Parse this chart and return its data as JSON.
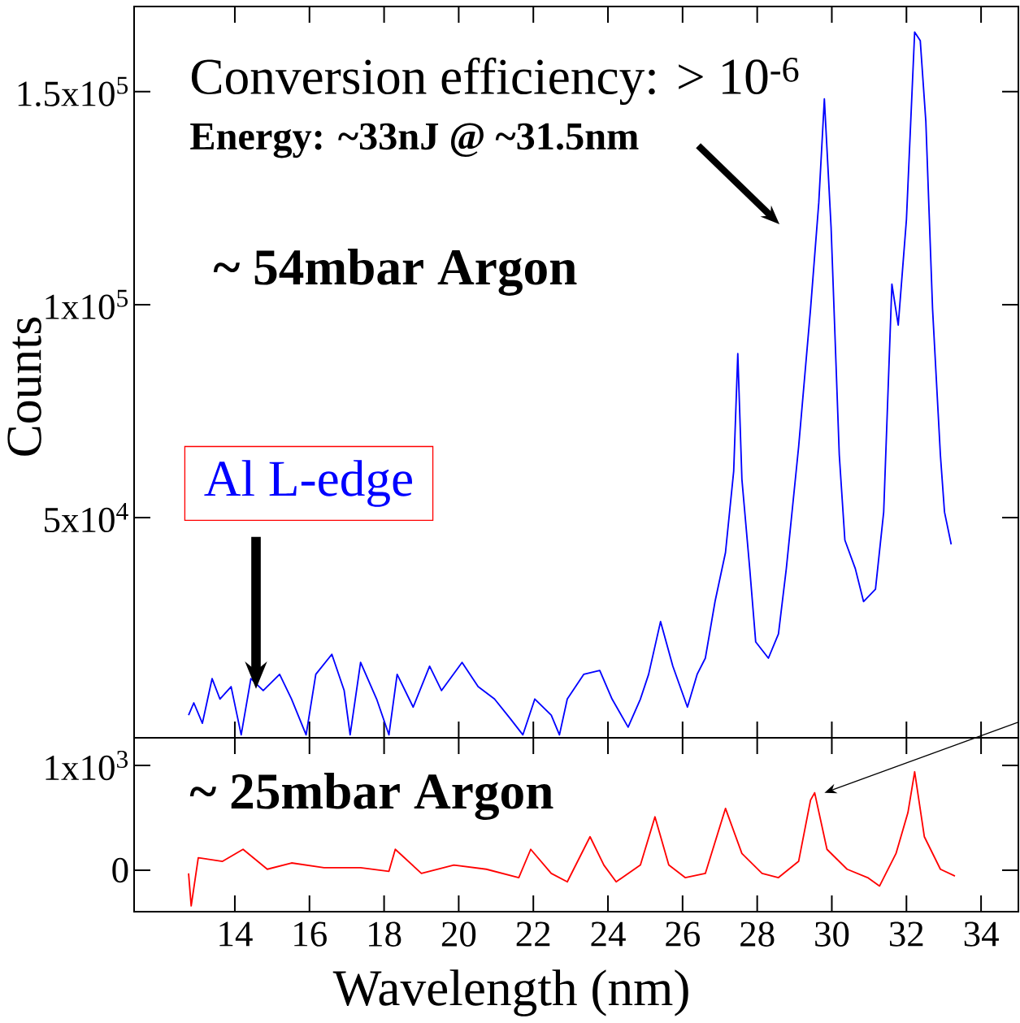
{
  "chart_data": [
    {
      "type": "line",
      "ylabel": "Counts",
      "tick_labels": "y",
      "xlim": [
        11.3,
        35.0
      ],
      "ylim": [
        -1700,
        170000
      ],
      "xticks": [
        14,
        16,
        18,
        20,
        22,
        24,
        26,
        28,
        30,
        32,
        34
      ],
      "yticks": [
        {
          "value": 50000,
          "label": "5x10$^{4}$"
        },
        {
          "value": 100000,
          "label": "1x10$^{5}$"
        },
        {
          "value": 150000,
          "label": "1.5x10$^{5}$"
        }
      ],
      "annotations": [
        "Conversion efficiency: > 10$^{-6}$",
        "Energy: ~33nJ @ ~31.5nm",
        "~ 54mbar Argon",
        "Al L-edge"
      ],
      "series": [
        {
          "color": "#0000ff",
          "line_style": "solid",
          "marker": "none",
          "x": [
            12.76,
            12.9,
            13.13,
            13.39,
            13.6,
            13.9,
            14.17,
            14.43,
            14.76,
            15.2,
            15.52,
            15.91,
            16.17,
            16.6,
            16.93,
            17.09,
            17.37,
            17.8,
            18.13,
            18.35,
            18.78,
            19.22,
            19.54,
            20.09,
            20.52,
            20.96,
            21.39,
            21.72,
            22.04,
            22.48,
            22.7,
            22.91,
            23.35,
            23.78,
            24.11,
            24.54,
            24.87,
            25.09,
            25.41,
            25.74,
            26.13,
            26.39,
            26.61,
            26.87,
            27.15,
            27.37,
            27.48,
            27.59,
            27.8,
            27.96,
            28.3,
            28.57,
            28.78,
            29.11,
            29.43,
            29.65,
            29.8,
            29.98,
            30.2,
            30.35,
            30.63,
            30.85,
            31.17,
            31.39,
            31.61,
            31.78,
            32.0,
            32.22,
            32.37,
            32.52,
            32.7,
            32.91,
            33.02,
            33.2
          ],
          "values": [
            3600,
            6500,
            1700,
            12200,
            7400,
            10300,
            -1000,
            12200,
            9400,
            13200,
            7400,
            -1000,
            13200,
            17900,
            9400,
            -1000,
            16000,
            7400,
            -1000,
            13200,
            5500,
            15100,
            9400,
            16000,
            10300,
            7400,
            2700,
            -1000,
            7400,
            3600,
            -1000,
            7400,
            13200,
            14100,
            7400,
            800,
            7400,
            13200,
            25600,
            15100,
            5500,
            13200,
            17000,
            30300,
            41800,
            60900,
            88500,
            59000,
            38000,
            20800,
            17000,
            22700,
            38000,
            66600,
            99000,
            123900,
            148300,
            118200,
            64700,
            44700,
            38000,
            30300,
            33200,
            51300,
            104800,
            95200,
            120000,
            164000,
            162000,
            143000,
            99000,
            64700,
            51300,
            43700
          ]
        }
      ]
    },
    {
      "type": "line",
      "xlabel": "Wavelength (nm)",
      "xlim": [
        11.3,
        35.0
      ],
      "ylim": [
        -395,
        1264
      ],
      "xticks": [
        14,
        16,
        18,
        20,
        22,
        24,
        26,
        28,
        30,
        32,
        34
      ],
      "yticks": [
        0,
        {
          "value": 1000,
          "label": "1x10$^{3}$"
        }
      ],
      "annotations": [
        "~ 25mbar Argon"
      ],
      "series": [
        {
          "color": "#ff0000",
          "line_style": "solid",
          "marker": "none",
          "x": [
            12.76,
            12.83,
            13.02,
            13.67,
            14.22,
            14.87,
            15.52,
            16.39,
            17.37,
            18.13,
            18.3,
            19.0,
            19.87,
            20.74,
            21.61,
            21.93,
            22.48,
            22.91,
            23.52,
            23.89,
            24.22,
            24.87,
            25.26,
            25.63,
            26.07,
            26.61,
            27.15,
            27.59,
            28.13,
            28.57,
            29.11,
            29.43,
            29.54,
            29.87,
            30.41,
            30.96,
            31.28,
            31.72,
            32.04,
            32.22,
            32.48,
            32.91,
            33.3
          ],
          "values": [
            -30,
            -340,
            120,
            85,
            200,
            10,
            70,
            25,
            25,
            -10,
            200,
            -30,
            50,
            10,
            -70,
            200,
            -30,
            -110,
            320,
            50,
            -110,
            50,
            510,
            50,
            -70,
            -30,
            590,
            160,
            -30,
            -70,
            85,
            670,
            740,
            200,
            10,
            -70,
            -150,
            160,
            550,
            940,
            320,
            10,
            -55
          ]
        }
      ]
    }
  ]
}
